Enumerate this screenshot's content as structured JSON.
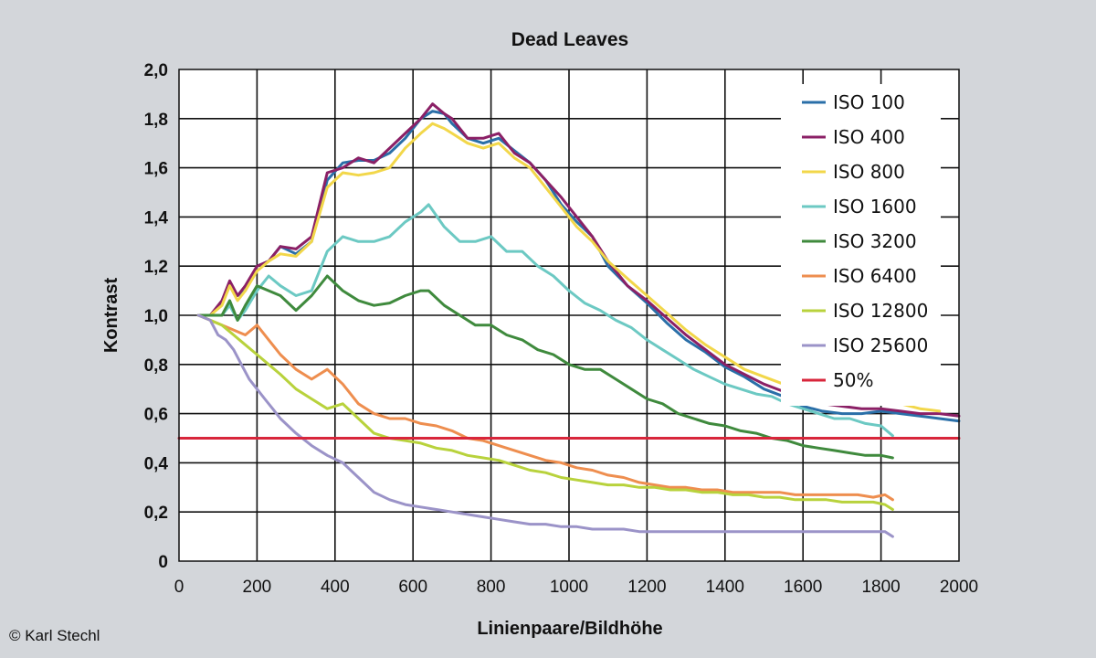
{
  "credit": "© Karl Stechl",
  "chart_data": {
    "type": "line",
    "title": "Dead Leaves",
    "xlabel": "Linienpaare/Bildhöhe",
    "ylabel": "Kontrast",
    "xlim": [
      0,
      2000
    ],
    "ylim": [
      0,
      2.0
    ],
    "xticks": [
      0,
      200,
      400,
      600,
      800,
      1000,
      1200,
      1400,
      1600,
      1800,
      2000
    ],
    "xtick_labels": [
      "0",
      "200",
      "400",
      "600",
      "800",
      "1000",
      "1200",
      "1400",
      "1600",
      "1800",
      "2000"
    ],
    "yticks": [
      0,
      0.2,
      0.4,
      0.6,
      0.8,
      1.0,
      1.2,
      1.4,
      1.6,
      1.8,
      2.0
    ],
    "ytick_labels": [
      "0",
      "0,2",
      "0,4",
      "0,6",
      "0,8",
      "1,0",
      "1,2",
      "1,4",
      "1,6",
      "1,8",
      "2,0"
    ],
    "grid": true,
    "legend_position": "top-right",
    "series": [
      {
        "name": "ISO 100",
        "color": "#2a6fa8",
        "x": [
          50,
          80,
          110,
          130,
          150,
          170,
          200,
          230,
          260,
          300,
          340,
          380,
          420,
          460,
          500,
          540,
          580,
          620,
          650,
          680,
          700,
          740,
          780,
          820,
          860,
          900,
          940,
          980,
          1020,
          1060,
          1100,
          1150,
          1200,
          1250,
          1300,
          1350,
          1400,
          1450,
          1500,
          1550,
          1600,
          1650,
          1700,
          1750,
          1800,
          1850,
          1900,
          1950,
          2000
        ],
        "y": [
          1.0,
          1.0,
          1.05,
          1.12,
          1.08,
          1.1,
          1.2,
          1.22,
          1.28,
          1.25,
          1.3,
          1.55,
          1.62,
          1.63,
          1.63,
          1.66,
          1.72,
          1.8,
          1.83,
          1.82,
          1.78,
          1.72,
          1.7,
          1.72,
          1.67,
          1.62,
          1.55,
          1.45,
          1.38,
          1.32,
          1.2,
          1.12,
          1.05,
          0.97,
          0.9,
          0.85,
          0.79,
          0.75,
          0.7,
          0.67,
          0.63,
          0.61,
          0.6,
          0.6,
          0.61,
          0.6,
          0.59,
          0.58,
          0.57
        ]
      },
      {
        "name": "ISO 400",
        "color": "#8b2066",
        "x": [
          50,
          80,
          110,
          130,
          150,
          170,
          200,
          230,
          260,
          300,
          340,
          380,
          420,
          460,
          500,
          540,
          580,
          620,
          650,
          680,
          700,
          740,
          780,
          820,
          860,
          900,
          940,
          980,
          1020,
          1060,
          1100,
          1150,
          1200,
          1250,
          1300,
          1350,
          1400,
          1450,
          1500,
          1550,
          1600,
          1650,
          1700,
          1750,
          1800,
          1850,
          1900,
          1950,
          2000
        ],
        "y": [
          1.0,
          1.0,
          1.06,
          1.14,
          1.08,
          1.12,
          1.2,
          1.22,
          1.28,
          1.27,
          1.32,
          1.58,
          1.6,
          1.64,
          1.62,
          1.68,
          1.74,
          1.8,
          1.86,
          1.82,
          1.8,
          1.72,
          1.72,
          1.74,
          1.66,
          1.62,
          1.55,
          1.48,
          1.4,
          1.32,
          1.22,
          1.12,
          1.06,
          0.99,
          0.92,
          0.86,
          0.8,
          0.76,
          0.72,
          0.69,
          0.66,
          0.64,
          0.63,
          0.62,
          0.62,
          0.61,
          0.6,
          0.6,
          0.59
        ]
      },
      {
        "name": "ISO 800",
        "color": "#f2d74a",
        "x": [
          50,
          80,
          110,
          130,
          150,
          170,
          200,
          230,
          260,
          300,
          340,
          380,
          420,
          460,
          500,
          540,
          580,
          620,
          650,
          680,
          700,
          740,
          780,
          820,
          860,
          900,
          940,
          980,
          1020,
          1060,
          1100,
          1150,
          1200,
          1250,
          1300,
          1350,
          1400,
          1450,
          1500,
          1550,
          1600,
          1650,
          1700,
          1750,
          1800,
          1850,
          1900,
          1950
        ],
        "y": [
          1.0,
          1.0,
          1.04,
          1.12,
          1.06,
          1.1,
          1.18,
          1.22,
          1.25,
          1.24,
          1.3,
          1.52,
          1.58,
          1.57,
          1.58,
          1.6,
          1.68,
          1.74,
          1.78,
          1.76,
          1.74,
          1.7,
          1.68,
          1.7,
          1.64,
          1.6,
          1.52,
          1.44,
          1.36,
          1.3,
          1.22,
          1.15,
          1.08,
          1.01,
          0.94,
          0.88,
          0.83,
          0.78,
          0.75,
          0.72,
          0.69,
          0.67,
          0.66,
          0.66,
          0.65,
          0.64,
          0.62,
          0.61
        ]
      },
      {
        "name": "ISO 1600",
        "color": "#6cc9c3",
        "x": [
          50,
          80,
          110,
          130,
          150,
          170,
          200,
          230,
          260,
          300,
          340,
          380,
          420,
          460,
          500,
          540,
          580,
          620,
          640,
          680,
          720,
          760,
          800,
          840,
          880,
          920,
          960,
          1000,
          1040,
          1080,
          1120,
          1160,
          1200,
          1240,
          1280,
          1320,
          1360,
          1400,
          1440,
          1480,
          1520,
          1560,
          1600,
          1640,
          1680,
          1720,
          1760,
          1800,
          1830
        ],
        "y": [
          1.0,
          1.0,
          1.0,
          1.04,
          0.98,
          1.02,
          1.1,
          1.16,
          1.12,
          1.08,
          1.1,
          1.26,
          1.32,
          1.3,
          1.3,
          1.32,
          1.38,
          1.42,
          1.45,
          1.36,
          1.3,
          1.3,
          1.32,
          1.26,
          1.26,
          1.2,
          1.16,
          1.1,
          1.05,
          1.02,
          0.98,
          0.95,
          0.9,
          0.86,
          0.82,
          0.78,
          0.75,
          0.72,
          0.7,
          0.68,
          0.67,
          0.64,
          0.62,
          0.6,
          0.58,
          0.58,
          0.56,
          0.55,
          0.51
        ]
      },
      {
        "name": "ISO 3200",
        "color": "#3f8a3d",
        "x": [
          50,
          80,
          110,
          130,
          150,
          170,
          200,
          230,
          260,
          300,
          340,
          380,
          420,
          460,
          500,
          540,
          580,
          620,
          640,
          680,
          720,
          760,
          800,
          840,
          880,
          920,
          960,
          1000,
          1040,
          1080,
          1120,
          1160,
          1200,
          1240,
          1280,
          1320,
          1360,
          1400,
          1440,
          1480,
          1520,
          1560,
          1600,
          1640,
          1680,
          1720,
          1760,
          1800,
          1830
        ],
        "y": [
          1.0,
          1.0,
          1.0,
          1.06,
          0.98,
          1.04,
          1.12,
          1.1,
          1.08,
          1.02,
          1.08,
          1.16,
          1.1,
          1.06,
          1.04,
          1.05,
          1.08,
          1.1,
          1.1,
          1.04,
          1.0,
          0.96,
          0.96,
          0.92,
          0.9,
          0.86,
          0.84,
          0.8,
          0.78,
          0.78,
          0.74,
          0.7,
          0.66,
          0.64,
          0.6,
          0.58,
          0.56,
          0.55,
          0.53,
          0.52,
          0.5,
          0.49,
          0.47,
          0.46,
          0.45,
          0.44,
          0.43,
          0.43,
          0.42
        ]
      },
      {
        "name": "ISO 6400",
        "color": "#ee8e4f",
        "x": [
          50,
          80,
          110,
          140,
          170,
          200,
          230,
          260,
          300,
          340,
          380,
          420,
          460,
          500,
          540,
          580,
          620,
          660,
          700,
          740,
          780,
          820,
          860,
          900,
          940,
          980,
          1020,
          1060,
          1100,
          1140,
          1180,
          1220,
          1260,
          1300,
          1340,
          1380,
          1420,
          1460,
          1500,
          1540,
          1580,
          1620,
          1660,
          1700,
          1740,
          1780,
          1810,
          1830
        ],
        "y": [
          1.0,
          0.98,
          0.96,
          0.94,
          0.92,
          0.96,
          0.9,
          0.84,
          0.78,
          0.74,
          0.78,
          0.72,
          0.64,
          0.6,
          0.58,
          0.58,
          0.56,
          0.55,
          0.53,
          0.5,
          0.49,
          0.47,
          0.45,
          0.43,
          0.41,
          0.4,
          0.38,
          0.37,
          0.35,
          0.34,
          0.32,
          0.31,
          0.3,
          0.3,
          0.29,
          0.29,
          0.28,
          0.28,
          0.28,
          0.28,
          0.27,
          0.27,
          0.27,
          0.27,
          0.27,
          0.26,
          0.27,
          0.25
        ]
      },
      {
        "name": "ISO 12800",
        "color": "#b8d23c",
        "x": [
          50,
          80,
          110,
          140,
          170,
          200,
          230,
          260,
          300,
          340,
          380,
          420,
          460,
          500,
          540,
          580,
          620,
          660,
          700,
          740,
          780,
          820,
          860,
          900,
          940,
          980,
          1020,
          1060,
          1100,
          1140,
          1180,
          1220,
          1260,
          1300,
          1340,
          1380,
          1420,
          1460,
          1500,
          1540,
          1580,
          1620,
          1660,
          1700,
          1740,
          1780,
          1810,
          1830
        ],
        "y": [
          1.0,
          0.98,
          0.96,
          0.92,
          0.88,
          0.84,
          0.8,
          0.76,
          0.7,
          0.66,
          0.62,
          0.64,
          0.58,
          0.52,
          0.5,
          0.49,
          0.48,
          0.46,
          0.45,
          0.43,
          0.42,
          0.41,
          0.39,
          0.37,
          0.36,
          0.34,
          0.33,
          0.32,
          0.31,
          0.31,
          0.3,
          0.3,
          0.29,
          0.29,
          0.28,
          0.28,
          0.27,
          0.27,
          0.26,
          0.26,
          0.25,
          0.25,
          0.25,
          0.24,
          0.24,
          0.24,
          0.23,
          0.21
        ]
      },
      {
        "name": "ISO 25600",
        "color": "#9b93c8",
        "x": [
          50,
          80,
          100,
          120,
          140,
          160,
          180,
          200,
          220,
          240,
          260,
          300,
          340,
          380,
          420,
          460,
          500,
          540,
          580,
          620,
          660,
          700,
          740,
          780,
          820,
          860,
          900,
          940,
          980,
          1020,
          1060,
          1100,
          1140,
          1180,
          1220,
          1260,
          1300,
          1340,
          1380,
          1420,
          1460,
          1500,
          1540,
          1580,
          1620,
          1660,
          1700,
          1740,
          1780,
          1810,
          1830
        ],
        "y": [
          1.0,
          0.98,
          0.92,
          0.9,
          0.86,
          0.8,
          0.74,
          0.7,
          0.66,
          0.62,
          0.58,
          0.52,
          0.47,
          0.43,
          0.4,
          0.34,
          0.28,
          0.25,
          0.23,
          0.22,
          0.21,
          0.2,
          0.19,
          0.18,
          0.17,
          0.16,
          0.15,
          0.15,
          0.14,
          0.14,
          0.13,
          0.13,
          0.13,
          0.12,
          0.12,
          0.12,
          0.12,
          0.12,
          0.12,
          0.12,
          0.12,
          0.12,
          0.12,
          0.12,
          0.12,
          0.12,
          0.12,
          0.12,
          0.12,
          0.12,
          0.1
        ]
      },
      {
        "name": "50%",
        "color": "#d8263b",
        "x": [
          0,
          2000
        ],
        "y": [
          0.5,
          0.5
        ]
      }
    ]
  }
}
